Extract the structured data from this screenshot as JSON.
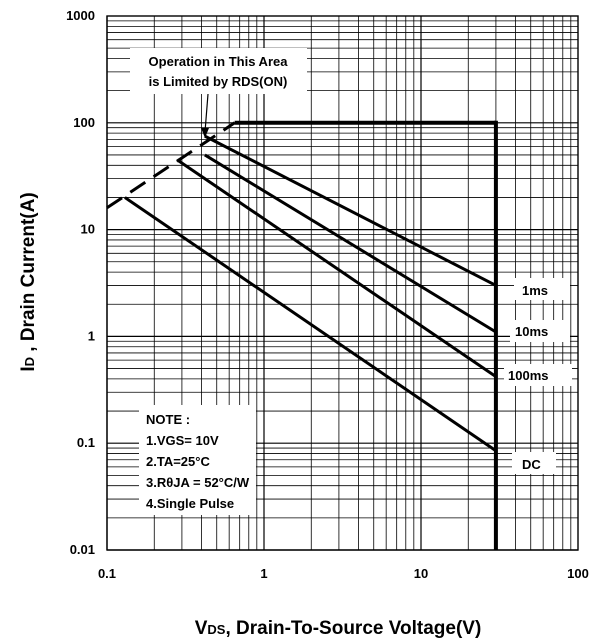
{
  "chart_data": {
    "type": "line",
    "xscale": "log",
    "yscale": "log",
    "xlim": [
      0.1,
      100
    ],
    "ylim": [
      0.01,
      1000
    ],
    "x_ticks": [
      "0.1",
      "1",
      "10",
      "100"
    ],
    "y_ticks": [
      "0.01",
      "0.1",
      "1",
      "10",
      "100",
      "1000"
    ],
    "grid": true,
    "xlabel_main": "V",
    "xlabel_sub": "DS",
    "xlabel_rest": ", Drain-To-Source Voltage(V)",
    "ylabel_main": "I",
    "ylabel_sub": "D",
    "ylabel_rest": " , Drain Current(A)",
    "boundary": {
      "current_limit": {
        "x": [
          0.65,
          30
        ],
        "y": [
          100,
          100
        ]
      },
      "voltage_limit": {
        "x": [
          30,
          30
        ],
        "y": [
          100,
          0.01
        ]
      },
      "rds_on_limit": {
        "x": [
          0.1,
          0.65
        ],
        "y": [
          16,
          100
        ]
      }
    },
    "series": [
      {
        "name": "1ms",
        "x": [
          0.42,
          30
        ],
        "y": [
          75,
          3
        ]
      },
      {
        "name": "10ms",
        "x": [
          0.42,
          30
        ],
        "y": [
          50,
          1.1
        ]
      },
      {
        "name": "100ms",
        "x": [
          0.28,
          30
        ],
        "y": [
          45,
          0.42
        ]
      },
      {
        "name": "DC",
        "x": [
          0.13,
          30
        ],
        "y": [
          20,
          0.085
        ]
      }
    ],
    "annotation": {
      "lines": [
        "Operation in This Area",
        "is Limited by RDS(ON)"
      ]
    },
    "note": {
      "lines": [
        "NOTE :",
        "1.VGS= 10V",
        "2.TA=25°C",
        "3.RθJA = 52°C/W",
        "4.Single Pulse"
      ]
    },
    "colors": {
      "line": "#000000",
      "grid": "#000000",
      "background": "#ffffff"
    }
  }
}
